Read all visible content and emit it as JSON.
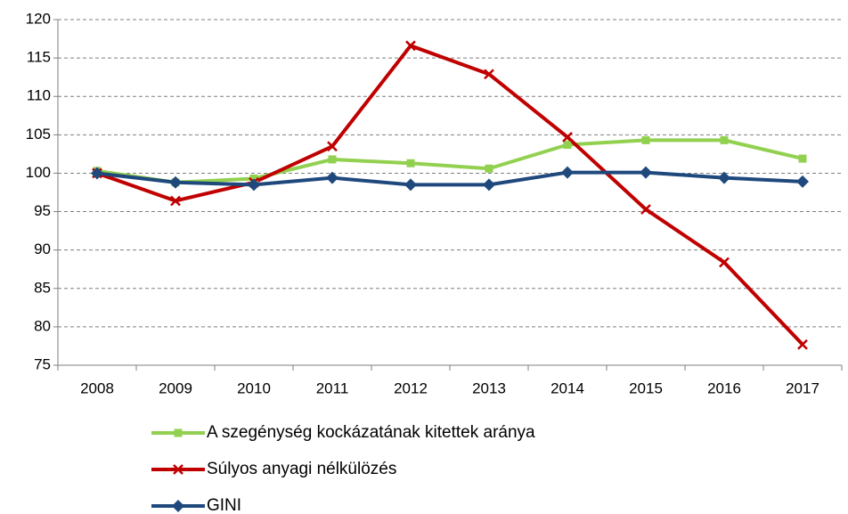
{
  "chart_data": {
    "type": "line",
    "categories": [
      "2008",
      "2009",
      "2010",
      "2011",
      "2012",
      "2013",
      "2014",
      "2015",
      "2016",
      "2017"
    ],
    "series": [
      {
        "name": "A szegénység kockázatának kitettek aránya",
        "color": "#92d050",
        "marker": "square",
        "values": [
          100.3,
          98.8,
          99.3,
          101.8,
          101.3,
          100.6,
          103.7,
          104.3,
          104.3,
          101.9
        ]
      },
      {
        "name": "Súlyos anyagi nélkülözés",
        "color": "#c00000",
        "marker": "x",
        "values": [
          100,
          96.4,
          98.8,
          103.5,
          116.6,
          112.9,
          104.7,
          95.3,
          88.4,
          77.7
        ]
      },
      {
        "name": "GINI",
        "color": "#1f497d",
        "marker": "diamond",
        "values": [
          100,
          98.8,
          98.5,
          99.4,
          98.5,
          98.5,
          100.1,
          100.1,
          99.4,
          98.9
        ]
      }
    ],
    "ylim": [
      75,
      120
    ],
    "yticks": [
      75,
      80,
      85,
      90,
      95,
      100,
      105,
      110,
      115,
      120
    ],
    "grid": true,
    "legend": "bottom"
  }
}
